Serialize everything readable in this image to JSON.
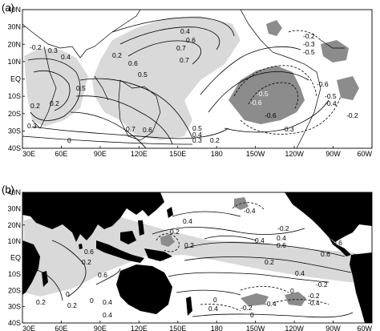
{
  "panels": [
    {
      "label": "(a)",
      "lat_ticks": [
        "40N",
        "30N",
        "20N",
        "10N",
        "EQ",
        "10S",
        "20S",
        "30S",
        "40S"
      ],
      "lon_ticks": [
        "30E",
        "60E",
        "90E",
        "120E",
        "150E",
        "180",
        "150W",
        "120W",
        "90W",
        "60W"
      ],
      "contour_labels": [
        "0.4",
        "0.6",
        "0.7",
        "-0.2",
        "0.3",
        "0.4",
        "0.2",
        "0.5",
        "0.2",
        "0.3",
        "0.7",
        "0.6",
        "0.5",
        "0.4",
        "0.3",
        "0.2",
        "0.7",
        "0.6",
        "0.5",
        "0.2",
        "-0.2",
        "-0.3",
        "-0.5",
        "-0.6",
        "-0.5",
        "-0.6",
        "-0.5",
        "-0.4",
        "-0.6",
        "-0.3",
        "-0.2",
        "0"
      ]
    },
    {
      "label": "(b)",
      "lat_ticks": [
        "40N",
        "30N",
        "20N",
        "10N",
        "EQ",
        "10S",
        "20S",
        "30S",
        "40S"
      ],
      "lon_ticks": [
        "30E",
        "60E",
        "90E",
        "120E",
        "150E",
        "180",
        "150W",
        "120W",
        "90W",
        "60W"
      ],
      "contour_labels": [
        "0.4",
        "-0.4",
        "0.2",
        "-0.2",
        "0.4",
        "0.6",
        "-0.2",
        "0.2",
        "0.6",
        "0.2",
        "0.6",
        "0.6",
        "0.4",
        "0.2",
        "0",
        "0",
        "0.2",
        "0.4",
        "0.2",
        "0.4",
        "0",
        "-0.4",
        "0.4",
        "-0.2",
        "0",
        "-0.2",
        "-0.4",
        "-0.2",
        "0",
        "0.4",
        "0.6",
        "0.6"
      ]
    }
  ]
}
